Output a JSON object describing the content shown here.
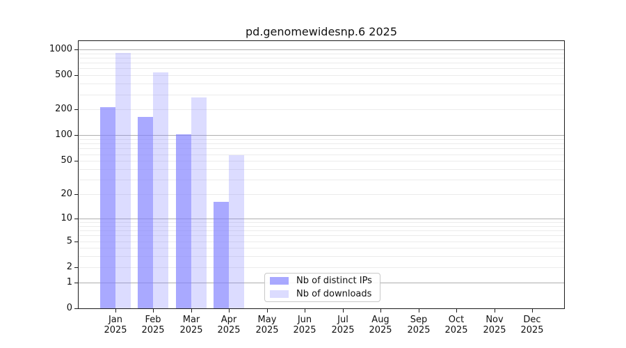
{
  "chart_data": {
    "type": "bar",
    "title": "pd.genomewidesnp.6 2025",
    "categories": [
      "Jan 2025",
      "Feb 2025",
      "Mar 2025",
      "Apr 2025",
      "May 2025",
      "Jun 2025",
      "Jul 2025",
      "Aug 2025",
      "Sep 2025",
      "Oct 2025",
      "Nov 2025",
      "Dec 2025"
    ],
    "series": [
      {
        "name": "Nb of distinct IPs",
        "color": "#8080ff",
        "opacity": 0.68,
        "values": [
          215,
          165,
          102,
          16,
          0,
          0,
          0,
          0,
          0,
          0,
          0,
          0
        ]
      },
      {
        "name": "Nb of downloads",
        "color": "#8080ff",
        "opacity": 0.28,
        "values": [
          910,
          540,
          275,
          58,
          0,
          0,
          0,
          0,
          0,
          0,
          0,
          0
        ]
      }
    ],
    "yscale": "log10(value+1)",
    "yticks": [
      0,
      1,
      2,
      5,
      10,
      20,
      50,
      100,
      200,
      500,
      1000
    ],
    "ylim": [
      0,
      1270
    ],
    "grid": "horizontal, minor light + major darker at 1/10/100/1000",
    "legend_position": "lower center",
    "background_color": "#ffffff"
  }
}
